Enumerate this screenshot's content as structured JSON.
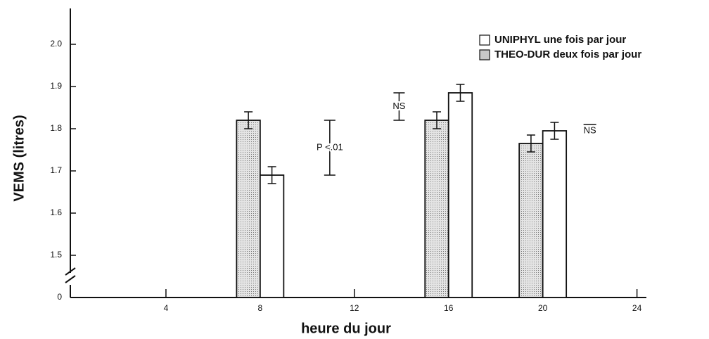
{
  "chart_data": {
    "type": "bar",
    "x_label": "heure du jour",
    "y_label": "VEMS (litres)",
    "x": [
      8,
      16,
      20
    ],
    "series": [
      {
        "name": "THEO-DUR deux fois par jour",
        "color": "#c8c8c8",
        "values": [
          1.82,
          1.82,
          1.765
        ],
        "errors": [
          0.02,
          0.02,
          0.02
        ]
      },
      {
        "name": "UNIPHYL une fois par jour",
        "color": "#ffffff",
        "values": [
          1.69,
          1.885,
          1.795
        ],
        "errors": [
          0.02,
          0.02,
          0.02
        ]
      }
    ],
    "xlim": [
      0,
      24.4
    ],
    "xticks": [
      4,
      8,
      12,
      16,
      20,
      24
    ],
    "ylim": [
      0,
      2.1
    ],
    "axis_break": [
      0,
      1.4
    ],
    "yticks": [
      0,
      1.5,
      1.6,
      1.7,
      1.8,
      1.9,
      {
        "value": 2,
        "label": "2.0"
      }
    ],
    "annotations": [
      {
        "text": "P <.01",
        "x": 10,
        "y": [
          1.69,
          1.82
        ]
      },
      {
        "text": "NS",
        "x": 13.9,
        "y": [
          1.82,
          1.885
        ]
      },
      {
        "text": "NS",
        "x": 22,
        "y": [
          1.795
        ]
      }
    ],
    "legend": "upper right"
  }
}
